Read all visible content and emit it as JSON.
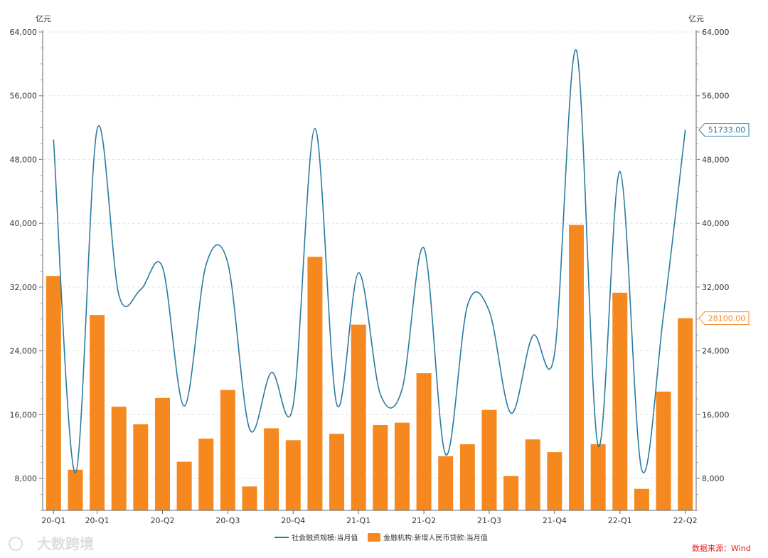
{
  "chart_data": {
    "type": "bar",
    "unit_left": "亿元",
    "unit_right": "亿元",
    "ylim": [
      4000,
      64000
    ],
    "yticks": [
      "8,000",
      "16,000",
      "24,000",
      "32,000",
      "40,000",
      "48,000",
      "56,000",
      "64,000"
    ],
    "ytick_values": [
      8000,
      16000,
      24000,
      32000,
      40000,
      48000,
      56000,
      64000
    ],
    "categories": [
      "2020-01",
      "2020-02",
      "2020-03",
      "2020-04",
      "2020-05",
      "2020-06",
      "2020-07",
      "2020-08",
      "2020-09",
      "2020-10",
      "2020-11",
      "2020-12",
      "2021-01",
      "2021-02",
      "2021-03",
      "2021-04",
      "2021-05",
      "2021-06",
      "2021-07",
      "2021-08",
      "2021-09",
      "2021-10",
      "2021-11",
      "2021-12",
      "2022-01",
      "2022-02",
      "2022-03",
      "2022-04",
      "2022-05",
      "2022-06"
    ],
    "xtick_labels": [
      {
        "index": 0,
        "label": "20-Q1"
      },
      {
        "index": 2,
        "label": "20-Q1"
      },
      {
        "index": 5,
        "label": "20-Q2"
      },
      {
        "index": 8,
        "label": "20-Q3"
      },
      {
        "index": 11,
        "label": "20-Q4"
      },
      {
        "index": 14,
        "label": "21-Q1"
      },
      {
        "index": 17,
        "label": "21-Q2"
      },
      {
        "index": 20,
        "label": "21-Q3"
      },
      {
        "index": 23,
        "label": "21-Q4"
      },
      {
        "index": 26,
        "label": "22-Q1"
      },
      {
        "index": 29,
        "label": "22-Q2"
      }
    ],
    "series": [
      {
        "name": "社会融资规模:当月值",
        "kind": "line",
        "color": "#2a7ba0",
        "values": [
          50500,
          8700,
          51800,
          31000,
          31700,
          34500,
          17100,
          34800,
          35000,
          14200,
          21300,
          17200,
          51900,
          17300,
          33800,
          18600,
          19200,
          36900,
          11000,
          29700,
          29000,
          16200,
          25900,
          23700,
          61700,
          12100,
          46500,
          9100,
          28500,
          51733
        ]
      },
      {
        "name": "金融机构:新增人民币贷款:当月值",
        "kind": "bar",
        "color": "#f5891f",
        "values": [
          33400,
          9100,
          28500,
          17000,
          14800,
          18100,
          10100,
          13000,
          19100,
          7000,
          14300,
          12800,
          35800,
          13600,
          27300,
          14700,
          15000,
          21200,
          10800,
          12300,
          16600,
          8300,
          12900,
          11300,
          39800,
          12300,
          31300,
          6700,
          18900,
          28100
        ]
      }
    ],
    "callouts": [
      {
        "series": 0,
        "label": "51733.00"
      },
      {
        "series": 1,
        "label": "28100.00"
      }
    ],
    "legend_position": "bottom-center",
    "grid": true,
    "source": "数据来源：Wind",
    "watermark": "大数跨境"
  }
}
